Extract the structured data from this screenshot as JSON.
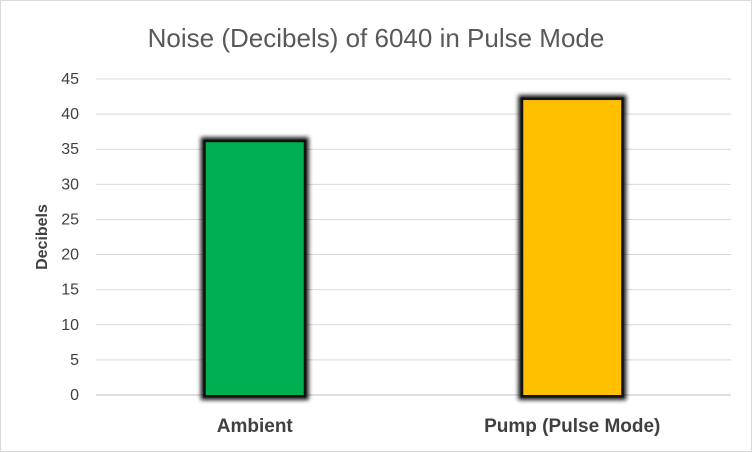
{
  "chart_data": {
    "type": "bar",
    "title": "Noise (Decibels) of 6040 in Pulse Mode",
    "xlabel": "",
    "ylabel": "Decibels",
    "categories": [
      "Ambient",
      "Pump (Pulse Mode)"
    ],
    "values": [
      36,
      42
    ],
    "colors": [
      "#00b050",
      "#ffc000"
    ],
    "bar_outline_color": "#000000",
    "ylim": [
      0,
      45
    ],
    "yticks": [
      0,
      5,
      10,
      15,
      20,
      25,
      30,
      35,
      40,
      45
    ],
    "grid": true,
    "legend": "none"
  }
}
